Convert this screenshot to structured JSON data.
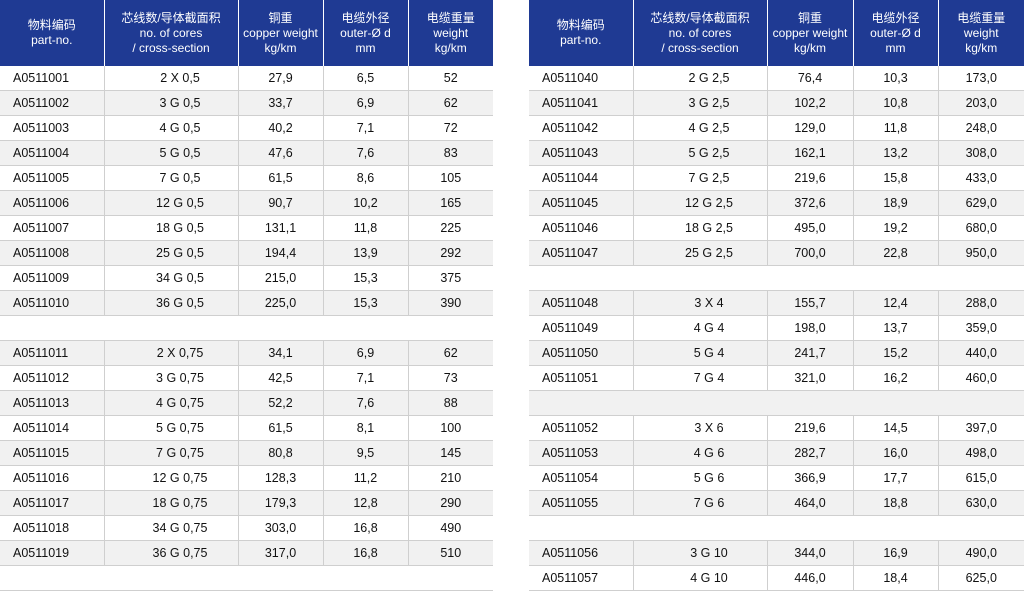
{
  "headers": [
    {
      "zh": "物料编码",
      "en": [
        "part-no."
      ]
    },
    {
      "zh": "芯线数/导体截面积",
      "en": [
        "no. of cores",
        "/ cross-section"
      ]
    },
    {
      "zh": "铜重",
      "en": [
        "copper weight",
        "kg/km"
      ]
    },
    {
      "zh": "电缆外径",
      "en": [
        "outer-Ø d",
        "mm"
      ]
    },
    {
      "zh": "电缆重量",
      "en": [
        "weight",
        "kg/km"
      ]
    }
  ],
  "left_rows": [
    [
      "A0511001",
      "2 X 0,5",
      "27,9",
      "6,5",
      "52"
    ],
    [
      "A0511002",
      "3 G 0,5",
      "33,7",
      "6,9",
      "62"
    ],
    [
      "A0511003",
      "4 G 0,5",
      "40,2",
      "7,1",
      "72"
    ],
    [
      "A0511004",
      "5 G 0,5",
      "47,6",
      "7,6",
      "83"
    ],
    [
      "A0511005",
      "7 G 0,5",
      "61,5",
      "8,6",
      "105"
    ],
    [
      "A0511006",
      "12 G 0,5",
      "90,7",
      "10,2",
      "165"
    ],
    [
      "A0511007",
      "18 G 0,5",
      "131,1",
      "11,8",
      "225"
    ],
    [
      "A0511008",
      "25 G 0,5",
      "194,4",
      "13,9",
      "292"
    ],
    [
      "A0511009",
      "34 G 0,5",
      "215,0",
      "15,3",
      "375"
    ],
    [
      "A0511010",
      "36 G 0,5",
      "225,0",
      "15,3",
      "390"
    ],
    null,
    [
      "A0511011",
      "2 X 0,75",
      "34,1",
      "6,9",
      "62"
    ],
    [
      "A0511012",
      "3 G 0,75",
      "42,5",
      "7,1",
      "73"
    ],
    [
      "A0511013",
      "4 G 0,75",
      "52,2",
      "7,6",
      "88"
    ],
    [
      "A0511014",
      "5 G 0,75",
      "61,5",
      "8,1",
      "100"
    ],
    [
      "A0511015",
      "7 G 0,75",
      "80,8",
      "9,5",
      "145"
    ],
    [
      "A0511016",
      "12 G 0,75",
      "128,3",
      "11,2",
      "210"
    ],
    [
      "A0511017",
      "18 G 0,75",
      "179,3",
      "12,8",
      "290"
    ],
    [
      "A0511018",
      "34 G 0,75",
      "303,0",
      "16,8",
      "490"
    ],
    [
      "A0511019",
      "36 G 0,75",
      "317,0",
      "16,8",
      "510"
    ],
    null
  ],
  "right_rows": [
    [
      "A0511040",
      "2 G 2,5",
      "76,4",
      "10,3",
      "173,0"
    ],
    [
      "A0511041",
      "3 G 2,5",
      "102,2",
      "10,8",
      "203,0"
    ],
    [
      "A0511042",
      "4 G 2,5",
      "129,0",
      "11,8",
      "248,0"
    ],
    [
      "A0511043",
      "5 G 2,5",
      "162,1",
      "13,2",
      "308,0"
    ],
    [
      "A0511044",
      "7 G 2,5",
      "219,6",
      "15,8",
      "433,0"
    ],
    [
      "A0511045",
      "12 G 2,5",
      "372,6",
      "18,9",
      "629,0"
    ],
    [
      "A0511046",
      "18 G 2,5",
      "495,0",
      "19,2",
      "680,0"
    ],
    [
      "A0511047",
      "25 G 2,5",
      "700,0",
      "22,8",
      "950,0"
    ],
    null,
    [
      "A0511048",
      "3 X 4",
      "155,7",
      "12,4",
      "288,0"
    ],
    [
      "A0511049",
      "4 G 4",
      "198,0",
      "13,7",
      "359,0"
    ],
    [
      "A0511050",
      "5 G 4",
      "241,7",
      "15,2",
      "440,0"
    ],
    [
      "A0511051",
      "7 G 4",
      "321,0",
      "16,2",
      "460,0"
    ],
    null,
    [
      "A0511052",
      "3 X 6",
      "219,6",
      "14,5",
      "397,0"
    ],
    [
      "A0511053",
      "4 G 6",
      "282,7",
      "16,0",
      "498,0"
    ],
    [
      "A0511054",
      "5 G 6",
      "366,9",
      "17,7",
      "615,0"
    ],
    [
      "A0511055",
      "7 G 6",
      "464,0",
      "18,8",
      "630,0"
    ],
    null,
    [
      "A0511056",
      "3 G 10",
      "344,0",
      "16,9",
      "490,0"
    ],
    [
      "A0511057",
      "4 G 10",
      "446,0",
      "18,4",
      "625,0"
    ]
  ],
  "colors": {
    "header_bg": "#1f3a93",
    "header_text": "#ffffff",
    "alt_row": "#f1f1f1",
    "grid": "#cfcfcf"
  }
}
